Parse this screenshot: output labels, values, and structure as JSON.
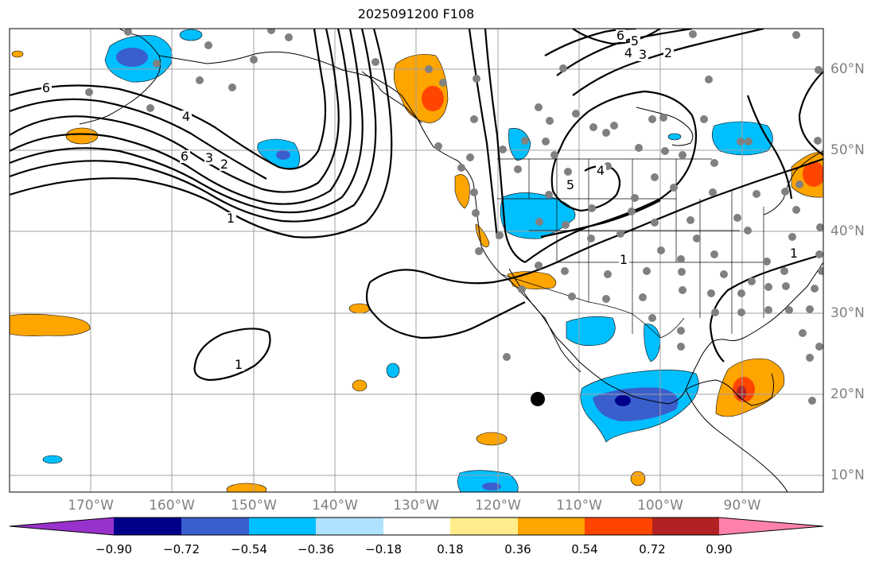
{
  "title": "2025091200 F108",
  "map": {
    "projection": "cylindrical",
    "lon_range": [
      -180,
      -80
    ],
    "lat_range": [
      8,
      65
    ],
    "gridlines": true,
    "coastlines": true,
    "state_borders": true
  },
  "axes": {
    "lon_labels": [
      "170°W",
      "160°W",
      "150°W",
      "140°W",
      "130°W",
      "120°W",
      "110°W",
      "100°W",
      "90°W"
    ],
    "lat_labels": [
      "60°N",
      "50°N",
      "40°N",
      "30°N",
      "20°N",
      "10°N"
    ]
  },
  "contours": {
    "color": "#000000",
    "labels": [
      "6",
      "5",
      "4",
      "3",
      "2",
      "6",
      "4",
      "3",
      "2",
      "1",
      "4",
      "5",
      "1",
      "1",
      "1",
      "6"
    ]
  },
  "colorbar": {
    "ticks": [
      "−0.90",
      "−0.72",
      "−0.54",
      "−0.36",
      "−0.18",
      "0.18",
      "0.36",
      "0.54",
      "0.72",
      "0.90"
    ],
    "colors": [
      "#9932cc",
      "#00008b",
      "#3a5fcd",
      "#00bfff",
      "#b0e2ff",
      "#ffffff",
      "#ffec8b",
      "#ffa500",
      "#ff4500",
      "#b22222",
      "#ff82ab"
    ]
  },
  "markers": {
    "station_color": "#808080",
    "center_marker_color": "#000000"
  }
}
